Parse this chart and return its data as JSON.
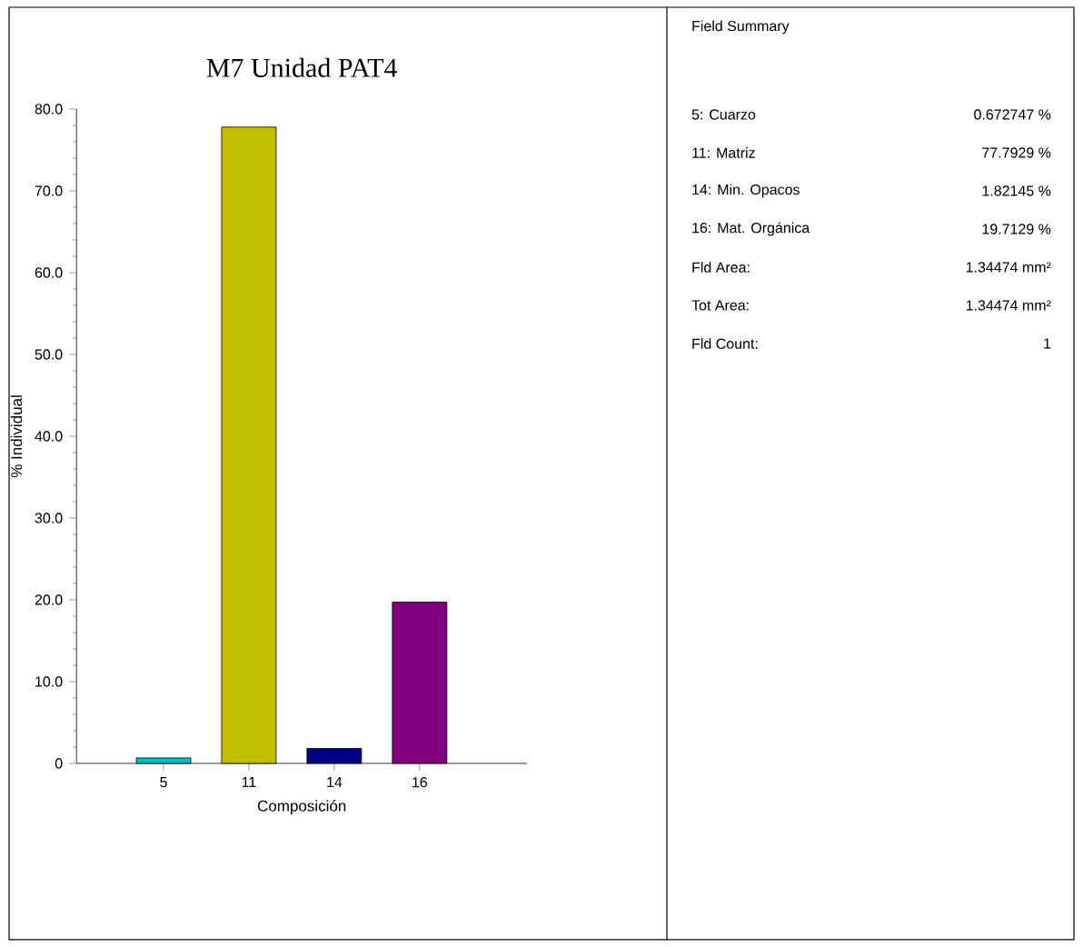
{
  "chart_data": [
    {
      "type": "bar",
      "title": "M7 Unidad PAT4",
      "xlabel": "Composición",
      "ylabel": "% Individual",
      "categories": [
        "5",
        "11",
        "14",
        "16"
      ],
      "values": [
        0.672747,
        77.7929,
        1.82145,
        19.7129
      ],
      "colors": [
        "#00c0c0",
        "#c0c000",
        "#000080",
        "#800080"
      ],
      "ylim": [
        0,
        80
      ],
      "yticks": [
        {
          "value": 0,
          "label": "0"
        },
        {
          "value": 10,
          "label": "10.0"
        },
        {
          "value": 20,
          "label": "20.0"
        },
        {
          "value": 30,
          "label": "30.0"
        },
        {
          "value": 40,
          "label": "40.0"
        },
        {
          "value": 50,
          "label": "50.0"
        },
        {
          "value": 60,
          "label": "60.0"
        },
        {
          "value": 70,
          "label": "70.0"
        },
        {
          "value": 80,
          "label": "80.0"
        }
      ]
    },
    {
      "type": "other",
      "title": "Field Summary",
      "annotations": [
        "5: Cuarzo",
        "0.672747 %",
        "11: Matriz",
        "77.7929 %",
        "14: Min. Opacos",
        "1.82145 %",
        "16: Mat. Orgánica",
        "19.7129 %",
        "Fld Area:",
        "1.34474 mm²",
        "Tot Area:",
        "1.34474 mm²",
        "Fld Count:",
        "1"
      ]
    }
  ]
}
